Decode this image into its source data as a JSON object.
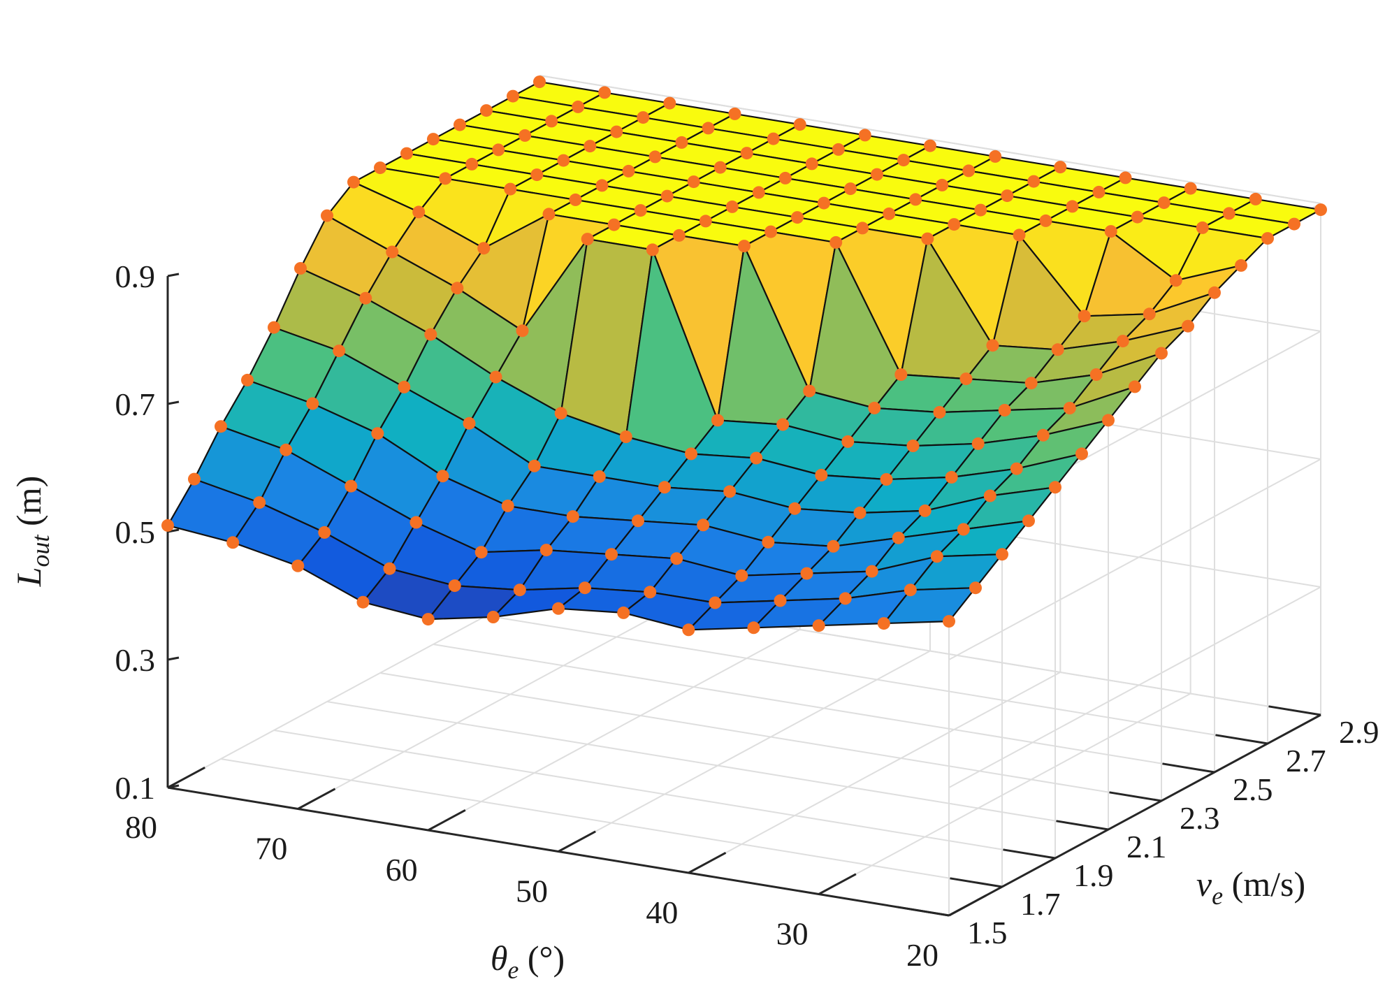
{
  "chart_data": {
    "type": "surface",
    "xlabel": {
      "main": "θ",
      "sub": "e",
      "unit": " (°)"
    },
    "ylabel": {
      "main": "v",
      "sub": "e",
      "unit": " (m/s)"
    },
    "zlabel": {
      "main": "L",
      "sub": "out",
      "unit": " (m)"
    },
    "x_ticks": [
      "80",
      "70",
      "60",
      "50",
      "40",
      "30",
      "20"
    ],
    "y_ticks": [
      "1.5",
      "1.7",
      "1.9",
      "2.1",
      "2.3",
      "2.5",
      "2.7",
      "2.9"
    ],
    "z_ticks": [
      "0.1",
      "0.3",
      "0.5",
      "0.7",
      "0.9"
    ],
    "xlim": [
      20,
      80
    ],
    "ylim": [
      1.5,
      2.9
    ],
    "zlim": [
      0.1,
      0.9
    ],
    "grid": true,
    "colormap": "parula",
    "marker_color": "#f57124",
    "theta_values": [
      80,
      75,
      70,
      65,
      60,
      55,
      50,
      45,
      40,
      35,
      30,
      25,
      20
    ],
    "v_values": [
      1.5,
      1.6,
      1.7,
      1.8,
      1.9,
      2.0,
      2.1,
      2.2,
      2.3,
      2.4,
      2.5,
      2.6,
      2.7,
      2.8,
      2.9
    ],
    "L_out": [
      [
        0.51,
        0.5,
        0.48,
        0.44,
        0.43,
        0.45,
        0.48,
        0.49,
        0.48,
        0.5,
        0.52,
        0.54,
        0.56
      ],
      [
        0.56,
        0.54,
        0.51,
        0.47,
        0.46,
        0.47,
        0.49,
        0.5,
        0.5,
        0.52,
        0.54,
        0.57,
        0.59
      ],
      [
        0.62,
        0.6,
        0.56,
        0.52,
        0.49,
        0.51,
        0.52,
        0.53,
        0.52,
        0.54,
        0.56,
        0.6,
        0.62
      ],
      [
        0.67,
        0.65,
        0.62,
        0.57,
        0.54,
        0.54,
        0.55,
        0.56,
        0.55,
        0.56,
        0.59,
        0.62,
        0.65
      ],
      [
        0.73,
        0.71,
        0.67,
        0.63,
        0.58,
        0.58,
        0.58,
        0.59,
        0.58,
        0.59,
        0.61,
        0.65,
        0.68
      ],
      [
        0.8,
        0.77,
        0.73,
        0.68,
        0.64,
        0.62,
        0.61,
        0.62,
        0.61,
        0.62,
        0.64,
        0.67,
        0.71
      ],
      [
        0.86,
        0.82,
        0.78,
        0.73,
        0.89,
        0.89,
        0.64,
        0.65,
        0.64,
        0.65,
        0.67,
        0.7,
        0.74
      ],
      [
        0.89,
        0.86,
        0.82,
        0.89,
        0.89,
        0.89,
        0.89,
        0.68,
        0.67,
        0.68,
        0.7,
        0.72,
        0.77
      ],
      [
        0.89,
        0.89,
        0.89,
        0.89,
        0.89,
        0.89,
        0.89,
        0.89,
        0.7,
        0.71,
        0.72,
        0.75,
        0.8
      ],
      [
        0.89,
        0.89,
        0.89,
        0.89,
        0.89,
        0.89,
        0.89,
        0.89,
        0.89,
        0.74,
        0.75,
        0.78,
        0.82
      ],
      [
        0.89,
        0.89,
        0.89,
        0.89,
        0.89,
        0.89,
        0.89,
        0.89,
        0.89,
        0.89,
        0.78,
        0.8,
        0.85
      ],
      [
        0.89,
        0.89,
        0.89,
        0.89,
        0.89,
        0.89,
        0.89,
        0.89,
        0.89,
        0.89,
        0.89,
        0.83,
        0.87
      ],
      [
        0.89,
        0.89,
        0.89,
        0.89,
        0.89,
        0.89,
        0.89,
        0.89,
        0.89,
        0.89,
        0.89,
        0.89,
        0.89
      ],
      [
        0.89,
        0.89,
        0.89,
        0.89,
        0.89,
        0.89,
        0.89,
        0.89,
        0.89,
        0.89,
        0.89,
        0.89,
        0.89
      ],
      [
        0.89,
        0.89,
        0.89,
        0.89,
        0.89,
        0.89,
        0.89,
        0.89,
        0.89,
        0.89,
        0.89,
        0.89,
        0.89
      ]
    ]
  }
}
